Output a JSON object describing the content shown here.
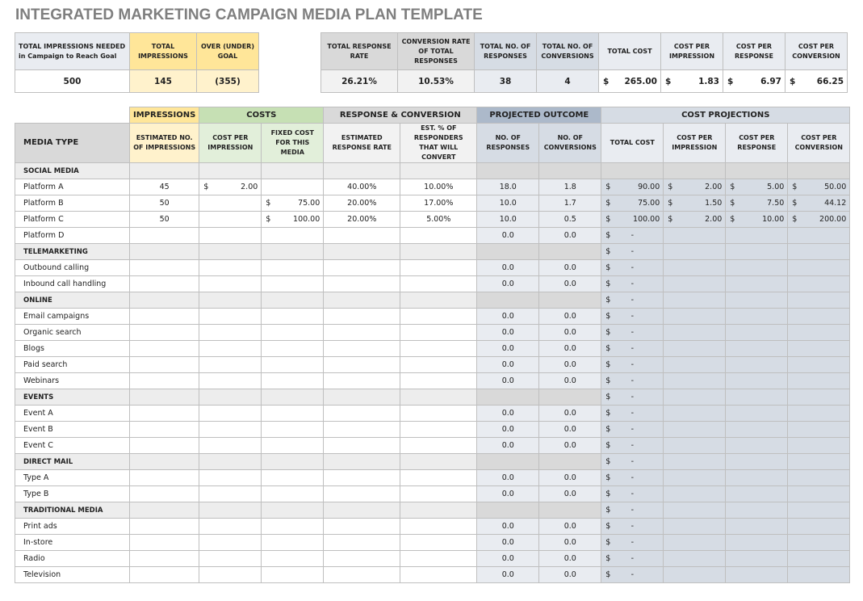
{
  "title": "INTEGRATED MARKETING CAMPAIGN MEDIA PLAN TEMPLATE",
  "summary": {
    "headers": [
      "TOTAL IMPRESSIONS NEEDED in Campaign to Reach Goal",
      "TOTAL IMPRESSIONS",
      "OVER (UNDER) GOAL",
      "TOTAL RESPONSE RATE",
      "CONVERSION RATE OF TOTAL RESPONSES",
      "TOTAL NO. OF RESPONSES",
      "TOTAL NO. OF CONVERSIONS",
      "TOTAL COST",
      "COST PER IMPRESSION",
      "COST PER RESPONSE",
      "COST PER CONVERSION"
    ],
    "values": [
      "500",
      "145",
      "(355)",
      "26.21%",
      "10.53%",
      "38",
      "4",
      "265.00",
      "1.83",
      "6.97",
      "66.25"
    ],
    "currency_symbol": "$"
  },
  "main": {
    "groups": [
      "IMPRESSIONS",
      "COSTS",
      "RESPONSE & CONVERSION",
      "PROJECTED OUTCOME",
      "COST PROJECTIONS"
    ],
    "columns": [
      "MEDIA TYPE",
      "ESTIMATED NO. OF IMPRESSIONS",
      "COST PER IMPRESSION",
      "FIXED COST FOR THIS MEDIA",
      "ESTIMATED RESPONSE RATE",
      "EST. % OF RESPONDERS THAT WILL CONVERT",
      "NO. OF RESPONSES",
      "NO. OF CONVERSIONS",
      "TOTAL COST",
      "COST PER IMPRESSION",
      "COST PER RESPONSE",
      "COST PER CONVERSION"
    ],
    "rows": [
      {
        "type": "cat",
        "cells": [
          "SOCIAL MEDIA",
          "",
          "",
          "",
          "",
          "",
          "",
          "",
          "",
          "",
          "",
          ""
        ]
      },
      {
        "type": "item",
        "cells": [
          "Platform A",
          "45",
          "2.00",
          "",
          "40.00%",
          "10.00%",
          "18.0",
          "1.8",
          "90.00",
          "2.00",
          "5.00",
          "50.00"
        ]
      },
      {
        "type": "item",
        "cells": [
          "Platform B",
          "50",
          "",
          "75.00",
          "20.00%",
          "17.00%",
          "10.0",
          "1.7",
          "75.00",
          "1.50",
          "7.50",
          "44.12"
        ]
      },
      {
        "type": "item",
        "cells": [
          "Platform C",
          "50",
          "",
          "100.00",
          "20.00%",
          "5.00%",
          "10.0",
          "0.5",
          "100.00",
          "2.00",
          "10.00",
          "200.00"
        ]
      },
      {
        "type": "item",
        "cells": [
          "Platform D",
          "",
          "",
          "",
          "",
          "",
          "0.0",
          "0.0",
          "-",
          "",
          "",
          ""
        ]
      },
      {
        "type": "cat",
        "cells": [
          "TELEMARKETING",
          "",
          "",
          "",
          "",
          "",
          "",
          "",
          "-",
          "",
          "",
          ""
        ]
      },
      {
        "type": "item",
        "cells": [
          "Outbound calling",
          "",
          "",
          "",
          "",
          "",
          "0.0",
          "0.0",
          "-",
          "",
          "",
          ""
        ]
      },
      {
        "type": "item",
        "cells": [
          "Inbound call handling",
          "",
          "",
          "",
          "",
          "",
          "0.0",
          "0.0",
          "-",
          "",
          "",
          ""
        ]
      },
      {
        "type": "cat",
        "cells": [
          "ONLINE",
          "",
          "",
          "",
          "",
          "",
          "",
          "",
          "-",
          "",
          "",
          ""
        ]
      },
      {
        "type": "item",
        "cells": [
          "Email campaigns",
          "",
          "",
          "",
          "",
          "",
          "0.0",
          "0.0",
          "-",
          "",
          "",
          ""
        ]
      },
      {
        "type": "item",
        "cells": [
          "Organic search",
          "",
          "",
          "",
          "",
          "",
          "0.0",
          "0.0",
          "-",
          "",
          "",
          ""
        ]
      },
      {
        "type": "item",
        "cells": [
          "Blogs",
          "",
          "",
          "",
          "",
          "",
          "0.0",
          "0.0",
          "-",
          "",
          "",
          ""
        ]
      },
      {
        "type": "item",
        "cells": [
          "Paid search",
          "",
          "",
          "",
          "",
          "",
          "0.0",
          "0.0",
          "-",
          "",
          "",
          ""
        ]
      },
      {
        "type": "item",
        "cells": [
          "Webinars",
          "",
          "",
          "",
          "",
          "",
          "0.0",
          "0.0",
          "-",
          "",
          "",
          ""
        ]
      },
      {
        "type": "cat",
        "cells": [
          "EVENTS",
          "",
          "",
          "",
          "",
          "",
          "",
          "",
          "-",
          "",
          "",
          ""
        ]
      },
      {
        "type": "item",
        "cells": [
          "Event A",
          "",
          "",
          "",
          "",
          "",
          "0.0",
          "0.0",
          "-",
          "",
          "",
          ""
        ]
      },
      {
        "type": "item",
        "cells": [
          "Event B",
          "",
          "",
          "",
          "",
          "",
          "0.0",
          "0.0",
          "-",
          "",
          "",
          ""
        ]
      },
      {
        "type": "item",
        "cells": [
          "Event C",
          "",
          "",
          "",
          "",
          "",
          "0.0",
          "0.0",
          "-",
          "",
          "",
          ""
        ]
      },
      {
        "type": "cat",
        "cells": [
          "DIRECT MAIL",
          "",
          "",
          "",
          "",
          "",
          "",
          "",
          "-",
          "",
          "",
          ""
        ]
      },
      {
        "type": "item",
        "cells": [
          "Type A",
          "",
          "",
          "",
          "",
          "",
          "0.0",
          "0.0",
          "-",
          "",
          "",
          ""
        ]
      },
      {
        "type": "item",
        "cells": [
          "Type B",
          "",
          "",
          "",
          "",
          "",
          "0.0",
          "0.0",
          "-",
          "",
          "",
          ""
        ]
      },
      {
        "type": "cat",
        "cells": [
          "TRADITIONAL MEDIA",
          "",
          "",
          "",
          "",
          "",
          "",
          "",
          "-",
          "",
          "",
          ""
        ]
      },
      {
        "type": "item",
        "cells": [
          "Print ads",
          "",
          "",
          "",
          "",
          "",
          "0.0",
          "0.0",
          "-",
          "",
          "",
          ""
        ]
      },
      {
        "type": "item",
        "cells": [
          "In-store",
          "",
          "",
          "",
          "",
          "",
          "0.0",
          "0.0",
          "-",
          "",
          "",
          ""
        ]
      },
      {
        "type": "item",
        "cells": [
          "Radio",
          "",
          "",
          "",
          "",
          "",
          "0.0",
          "0.0",
          "-",
          "",
          "",
          ""
        ]
      },
      {
        "type": "item",
        "cells": [
          "Television",
          "",
          "",
          "",
          "",
          "",
          "0.0",
          "0.0",
          "-",
          "",
          "",
          ""
        ]
      }
    ]
  },
  "colors": {
    "yellow_header": "#ffe699",
    "yellow_light": "#fff2cc",
    "green_header": "#c6e0b4",
    "green_light": "#e2efda",
    "gray_header": "#d9d9d9",
    "gray_light": "#ededed",
    "projected_header": "#acb9ca",
    "projected_light": "#e9ecf1",
    "cost_proj": "#d6dce4"
  }
}
